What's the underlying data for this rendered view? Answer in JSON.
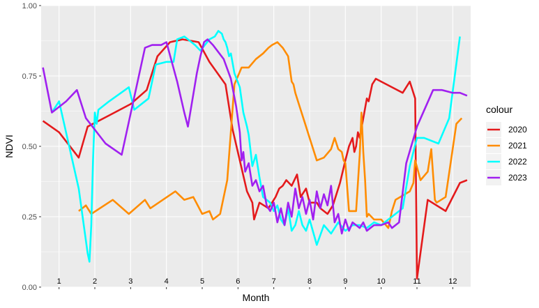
{
  "chart_data": {
    "type": "line",
    "title": "",
    "xlabel": "Month",
    "ylabel": "NDVI",
    "xlim": [
      0.5,
      12.5
    ],
    "ylim": [
      0,
      1
    ],
    "yticks": [
      "0.00",
      "0.25",
      "0.50",
      "0.75",
      "1.00"
    ],
    "yticks_values": [
      0,
      0.25,
      0.5,
      0.75,
      1.0
    ],
    "month_labels": [
      "1",
      "2",
      "3",
      "4",
      "5",
      "6",
      "7",
      "8",
      "9",
      "10",
      "11",
      "12"
    ],
    "grid": true,
    "legend": {
      "title": "colour",
      "placement": "right"
    },
    "series": [
      {
        "name": "2020",
        "color": "#e41a1c",
        "x": [
          0.55,
          1.0,
          1.55,
          1.8,
          2.4,
          3.0,
          3.45,
          3.75,
          4.1,
          4.45,
          4.9,
          5.2,
          5.65,
          5.85,
          6.05,
          6.25,
          6.4,
          6.45,
          6.6,
          6.85,
          7.05,
          7.15,
          7.25,
          7.35,
          7.5,
          7.65,
          7.75,
          7.9,
          8.0,
          8.2,
          8.3,
          8.5,
          8.65,
          8.85,
          9.0,
          9.1,
          9.2,
          9.25,
          9.3,
          9.35,
          9.4,
          9.5,
          9.6,
          9.65,
          9.75,
          9.85,
          10.0,
          10.6,
          10.8,
          10.95,
          11.0,
          11.3,
          11.8,
          12.2,
          12.4
        ],
        "y": [
          0.59,
          0.55,
          0.46,
          0.57,
          0.61,
          0.65,
          0.7,
          0.82,
          0.87,
          0.88,
          0.87,
          0.8,
          0.72,
          0.56,
          0.45,
          0.34,
          0.3,
          0.24,
          0.3,
          0.28,
          0.32,
          0.35,
          0.36,
          0.38,
          0.36,
          0.4,
          0.32,
          0.35,
          0.3,
          0.3,
          0.28,
          0.26,
          0.29,
          0.37,
          0.45,
          0.5,
          0.53,
          0.48,
          0.5,
          0.55,
          0.53,
          0.6,
          0.67,
          0.66,
          0.72,
          0.74,
          0.73,
          0.69,
          0.73,
          0.67,
          0.03,
          0.31,
          0.27,
          0.37,
          0.38
        ]
      },
      {
        "name": "2021",
        "color": "#ff8c00",
        "x": [
          1.55,
          1.75,
          1.9,
          2.5,
          2.95,
          3.4,
          3.55,
          4.25,
          4.5,
          4.75,
          5.0,
          5.2,
          5.3,
          5.5,
          5.7,
          5.9,
          6.1,
          6.3,
          6.5,
          6.7,
          6.85,
          6.95,
          7.1,
          7.25,
          7.4,
          7.5,
          7.55,
          7.6,
          7.7,
          7.9,
          8.0,
          8.2,
          8.4,
          8.6,
          8.7,
          8.8,
          8.9,
          8.95,
          9.0,
          9.1,
          9.3,
          9.4,
          9.45,
          9.5,
          9.55,
          9.6,
          9.65,
          9.8,
          10.0,
          10.2,
          10.3,
          10.4,
          10.8,
          10.9,
          10.95,
          11.1,
          11.3,
          11.4,
          11.5,
          11.55,
          11.8,
          12.1,
          12.25
        ],
        "y": [
          0.27,
          0.29,
          0.26,
          0.31,
          0.26,
          0.31,
          0.28,
          0.34,
          0.31,
          0.32,
          0.26,
          0.27,
          0.24,
          0.26,
          0.38,
          0.72,
          0.78,
          0.78,
          0.81,
          0.83,
          0.85,
          0.86,
          0.87,
          0.85,
          0.82,
          0.73,
          0.72,
          0.69,
          0.65,
          0.57,
          0.53,
          0.45,
          0.46,
          0.49,
          0.53,
          0.49,
          0.48,
          0.45,
          0.44,
          0.27,
          0.27,
          0.47,
          0.62,
          0.48,
          0.38,
          0.25,
          0.26,
          0.24,
          0.24,
          0.21,
          0.27,
          0.31,
          0.34,
          0.37,
          0.45,
          0.38,
          0.41,
          0.49,
          0.31,
          0.3,
          0.32,
          0.58,
          0.6
        ]
      },
      {
        "name": "2022",
        "color": "#00ffff",
        "x": [
          0.8,
          1.0,
          1.55,
          1.8,
          1.85,
          1.9,
          1.95,
          2.0,
          2.05,
          2.1,
          2.4,
          2.95,
          3.1,
          3.5,
          3.7,
          4.0,
          4.2,
          4.3,
          4.5,
          4.7,
          4.8,
          4.95,
          5.2,
          5.35,
          5.45,
          5.55,
          5.6,
          5.65,
          5.7,
          5.75,
          5.8,
          5.9,
          6.05,
          6.15,
          6.25,
          6.3,
          6.4,
          6.5,
          6.6,
          6.7,
          6.8,
          6.9,
          7.0,
          7.1,
          7.2,
          7.3,
          7.4,
          7.5,
          7.6,
          7.7,
          7.8,
          7.9,
          8.0,
          8.2,
          8.4,
          8.6,
          8.8,
          9.0,
          9.2,
          9.4,
          9.6,
          9.8,
          10.0,
          10.2,
          10.3,
          10.6,
          10.8,
          11.0,
          11.2,
          11.6,
          11.9,
          12.2
        ],
        "y": [
          0.62,
          0.66,
          0.35,
          0.12,
          0.09,
          0.22,
          0.45,
          0.62,
          0.58,
          0.63,
          0.66,
          0.71,
          0.63,
          0.67,
          0.79,
          0.8,
          0.8,
          0.88,
          0.89,
          0.87,
          0.86,
          0.84,
          0.88,
          0.89,
          0.91,
          0.9,
          0.88,
          0.87,
          0.85,
          0.82,
          0.83,
          0.76,
          0.71,
          0.62,
          0.57,
          0.54,
          0.43,
          0.47,
          0.39,
          0.32,
          0.31,
          0.3,
          0.27,
          0.29,
          0.24,
          0.22,
          0.28,
          0.2,
          0.22,
          0.27,
          0.22,
          0.2,
          0.24,
          0.15,
          0.22,
          0.19,
          0.23,
          0.2,
          0.22,
          0.22,
          0.21,
          0.23,
          0.22,
          0.24,
          0.25,
          0.28,
          0.43,
          0.53,
          0.53,
          0.51,
          0.6,
          0.89
        ]
      },
      {
        "name": "2023",
        "color": "#a020f0",
        "x": [
          0.55,
          0.8,
          1.2,
          1.5,
          1.75,
          2.3,
          2.75,
          3.4,
          3.6,
          3.85,
          4.0,
          4.15,
          4.3,
          4.5,
          4.6,
          4.85,
          4.95,
          5.05,
          5.15,
          5.3,
          5.6,
          5.8,
          5.95,
          6.05,
          6.1,
          6.15,
          6.2,
          6.3,
          6.4,
          6.5,
          6.6,
          6.7,
          6.8,
          6.9,
          7.0,
          7.1,
          7.2,
          7.3,
          7.4,
          7.5,
          7.6,
          7.7,
          7.8,
          7.9,
          8.0,
          8.1,
          8.2,
          8.3,
          8.4,
          8.5,
          8.6,
          8.7,
          8.8,
          8.9,
          9.0,
          9.1,
          9.2,
          9.3,
          9.4,
          9.5,
          9.6,
          9.8,
          10.0,
          10.2,
          10.3,
          10.5,
          10.7,
          11.0,
          11.45,
          11.7,
          12.0,
          12.2,
          12.4
        ],
        "y": [
          0.78,
          0.62,
          0.66,
          0.7,
          0.6,
          0.51,
          0.47,
          0.85,
          0.86,
          0.86,
          0.87,
          0.8,
          0.73,
          0.62,
          0.57,
          0.76,
          0.82,
          0.87,
          0.88,
          0.86,
          0.81,
          0.74,
          0.64,
          0.55,
          0.45,
          0.48,
          0.41,
          0.44,
          0.36,
          0.38,
          0.34,
          0.36,
          0.29,
          0.27,
          0.3,
          0.23,
          0.28,
          0.22,
          0.3,
          0.25,
          0.35,
          0.28,
          0.32,
          0.26,
          0.31,
          0.24,
          0.34,
          0.28,
          0.33,
          0.29,
          0.36,
          0.23,
          0.26,
          0.19,
          0.24,
          0.2,
          0.23,
          0.22,
          0.21,
          0.23,
          0.2,
          0.22,
          0.22,
          0.23,
          0.21,
          0.23,
          0.44,
          0.57,
          0.7,
          0.7,
          0.69,
          0.69,
          0.68
        ]
      }
    ]
  }
}
